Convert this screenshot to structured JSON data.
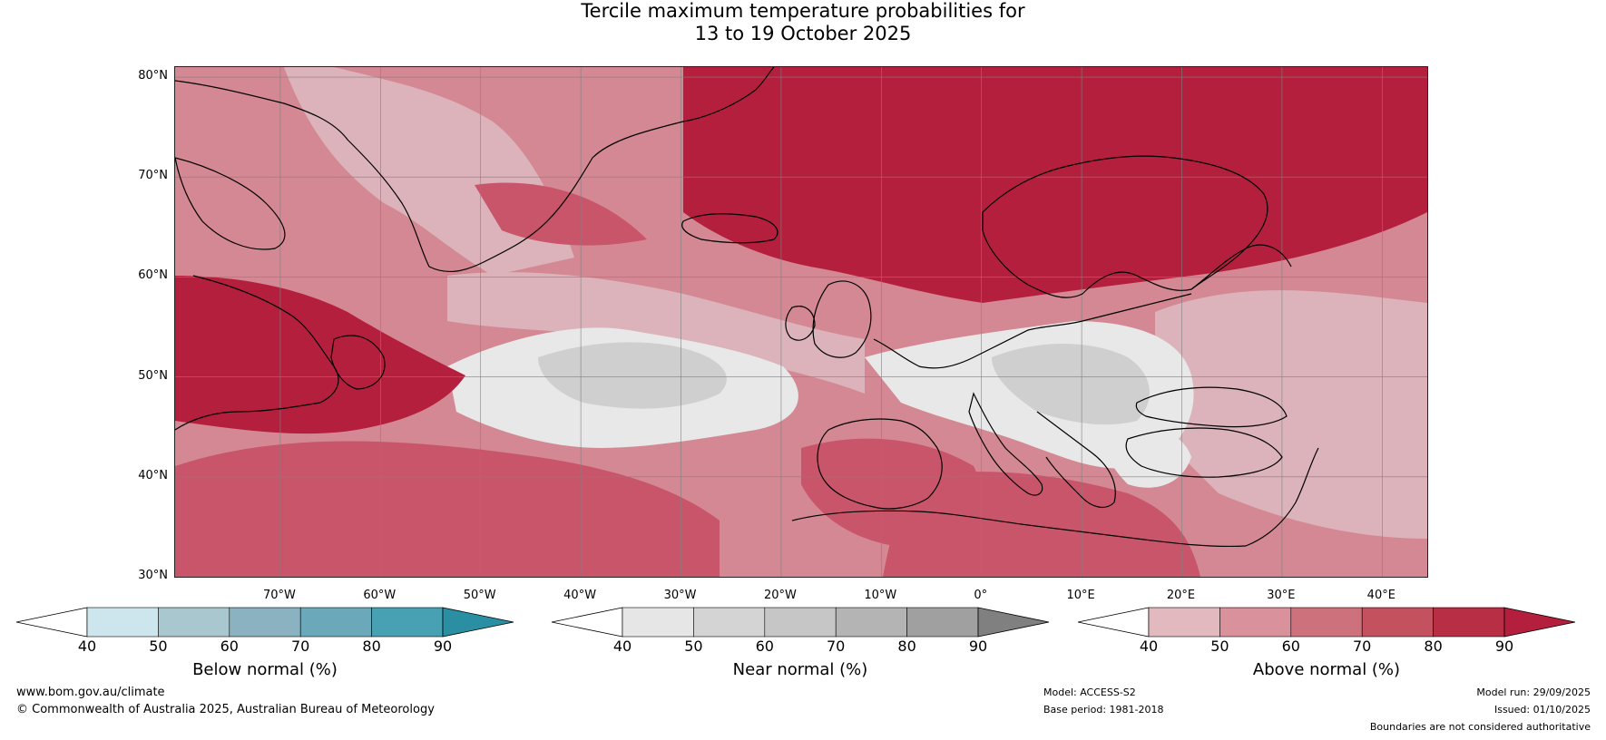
{
  "title": {
    "line1": "Tercile maximum temperature probabilities for",
    "line2": "13 to 19 October 2025"
  },
  "map": {
    "lat_labels": [
      "80°N",
      "70°N",
      "60°N",
      "50°N",
      "40°N",
      "30°N"
    ],
    "lon_labels": [
      "70°W",
      "60°W",
      "50°W",
      "40°W",
      "30°W",
      "20°W",
      "10°W",
      "0°",
      "10°E",
      "20°E",
      "30°E",
      "40°E"
    ],
    "extent": {
      "lon_min": -80.5,
      "lon_max": 44.5,
      "lat_min": 30,
      "lat_max": 81
    },
    "colors": {
      "above_low": "#dcb3ba",
      "above_mid": "#d48893",
      "above_high": "#c8556a",
      "above_max": "#b41f3e",
      "near_light": "#e8e8e8",
      "near_mid": "#cfcfcf",
      "coast": "#000000",
      "border": "#808080"
    }
  },
  "colorbars": [
    {
      "label": "Below normal (%)",
      "ticks": [
        "40",
        "50",
        "60",
        "70",
        "80",
        "90"
      ],
      "colors": [
        "#ffffff",
        "#cde5ec",
        "#a8c7ce",
        "#8ab2c0",
        "#6ba8b9",
        "#48a1b3",
        "#2b8fa3"
      ]
    },
    {
      "label": "Near normal (%)",
      "ticks": [
        "40",
        "50",
        "60",
        "70",
        "80",
        "90"
      ],
      "colors": [
        "#ffffff",
        "#e6e6e6",
        "#d4d4d4",
        "#c6c6c6",
        "#b4b4b4",
        "#a0a0a0",
        "#808080"
      ]
    },
    {
      "label": "Above normal (%)",
      "ticks": [
        "40",
        "50",
        "60",
        "70",
        "80",
        "90"
      ],
      "colors": [
        "#ffffff",
        "#e3b9c0",
        "#d9919b",
        "#cd727c",
        "#c4515e",
        "#b82e44",
        "#b41f3e"
      ]
    }
  ],
  "footer": {
    "website": "www.bom.gov.au/climate",
    "copyright": "© Commonwealth of Australia 2025, Australian Bureau of Meteorology",
    "model": "Model: ACCESS-S2",
    "base_period": "Base period: 1981-2018",
    "model_run": "Model run: 29/09/2025",
    "issued": "Issued: 01/10/2025",
    "disclaimer": "Boundaries are not considered authoritative"
  }
}
